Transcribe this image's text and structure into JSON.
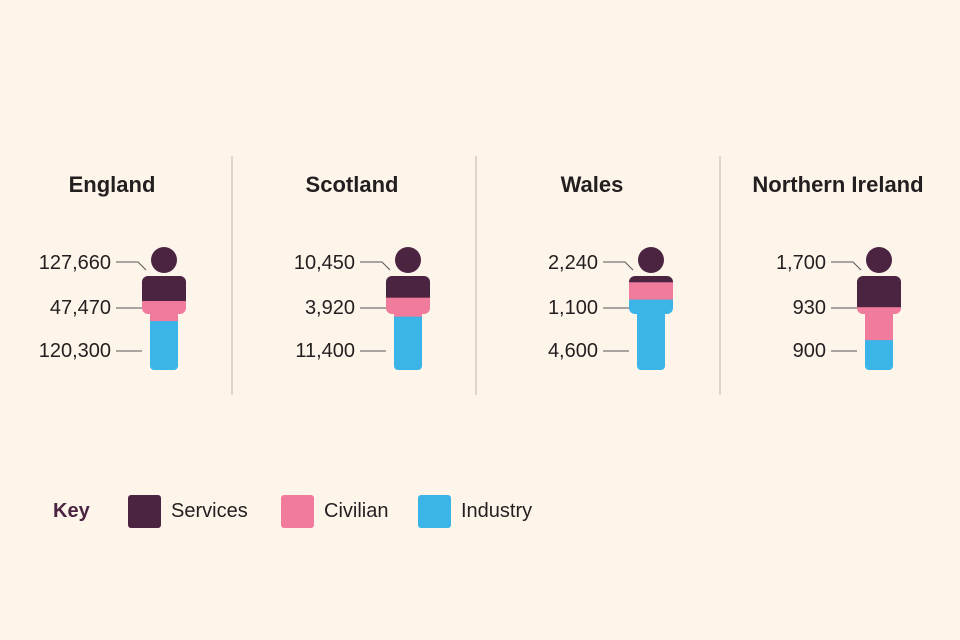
{
  "chart_data": {
    "type": "pictogram",
    "categories": [
      "England",
      "Scotland",
      "Wales",
      "Northern Ireland"
    ],
    "series": [
      {
        "name": "Services",
        "values": [
          127660,
          10450,
          2240,
          1700
        ],
        "labels": [
          "127,660",
          "10,450",
          "2,240",
          "1,700"
        ]
      },
      {
        "name": "Civilian",
        "values": [
          47470,
          3920,
          1100,
          930
        ],
        "labels": [
          "47,470",
          "3,920",
          "1,100",
          "930"
        ]
      },
      {
        "name": "Industry",
        "values": [
          120300,
          11400,
          4600,
          900
        ],
        "labels": [
          "120,300",
          "11,400",
          "4,600",
          "900"
        ]
      }
    ],
    "colors": {
      "Services": "#4a2440",
      "Civilian": "#f07b9c",
      "Industry": "#3bb5e8"
    },
    "key": {
      "title": "Key",
      "items": [
        "Services",
        "Civilian",
        "Industry"
      ]
    }
  }
}
